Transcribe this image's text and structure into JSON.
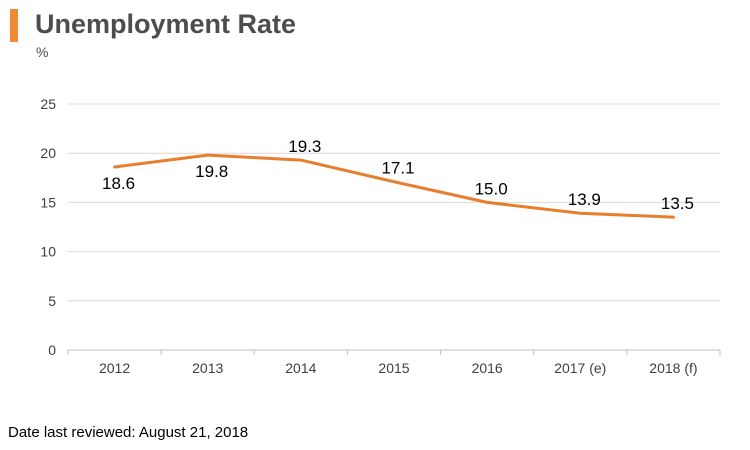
{
  "colors": {
    "accent": "#f08a33",
    "line": "#e87d2e",
    "grid": "#d9d9d9"
  },
  "header": {
    "title": "Unemployment Rate",
    "unit": "%"
  },
  "footer": {
    "reviewed": "Date last reviewed: August 21, 2018"
  },
  "chart_data": {
    "type": "line",
    "title": "Unemployment Rate",
    "ylabel": "%",
    "xlabel": "",
    "categories": [
      "2012",
      "2013",
      "2014",
      "2015",
      "2016",
      "2017 (e)",
      "2018 (f)"
    ],
    "series": [
      {
        "values": [
          18.6,
          19.8,
          19.3,
          17.1,
          15.0,
          13.9,
          13.5
        ],
        "labels": [
          "18.6",
          "19.8",
          "19.3",
          "17.1",
          "15.0",
          "13.9",
          "13.5"
        ],
        "label_positions": [
          "below",
          "below",
          "above",
          "above",
          "above",
          "above",
          "above"
        ]
      }
    ],
    "ylim": [
      0,
      25
    ],
    "yticks": [
      0,
      5,
      10,
      15,
      20,
      25
    ],
    "grid": true,
    "legend": "none"
  }
}
